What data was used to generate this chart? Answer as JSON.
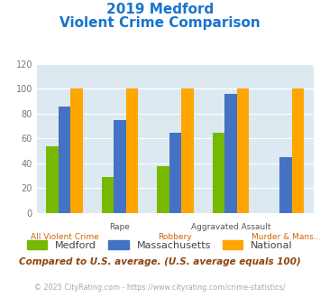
{
  "title_line1": "2019 Medford",
  "title_line2": "Violent Crime Comparison",
  "title_color": "#1874CD",
  "categories": [
    "All Violent Crime",
    "Rape",
    "Robbery",
    "Aggravated Assault",
    "Murder & Mans..."
  ],
  "series": {
    "Medford": [
      54,
      29,
      38,
      65,
      0
    ],
    "Massachusetts": [
      86,
      75,
      65,
      96,
      45
    ],
    "National": [
      100,
      100,
      100,
      100,
      100
    ]
  },
  "colors": {
    "Medford": "#76b900",
    "Massachusetts": "#4472c4",
    "National": "#ffa500"
  },
  "ylim": [
    0,
    120
  ],
  "yticks": [
    0,
    20,
    40,
    60,
    80,
    100,
    120
  ],
  "plot_bg": "#dce9f0",
  "footer_text": "Compared to U.S. average. (U.S. average equals 100)",
  "footer_color": "#8B4513",
  "copyright_text": "© 2025 CityRating.com - https://www.cityrating.com/crime-statistics/",
  "copyright_color": "#aaaaaa",
  "top_xlabel": {
    "1": "Rape",
    "3": "Aggravated Assault"
  },
  "bottom_xlabel": {
    "0": "All Violent Crime",
    "2": "Robbery",
    "4": "Murder & Mans..."
  },
  "top_xlabel_color": "#555555",
  "bottom_xlabel_color": "#cc6600",
  "bar_width": 0.22
}
